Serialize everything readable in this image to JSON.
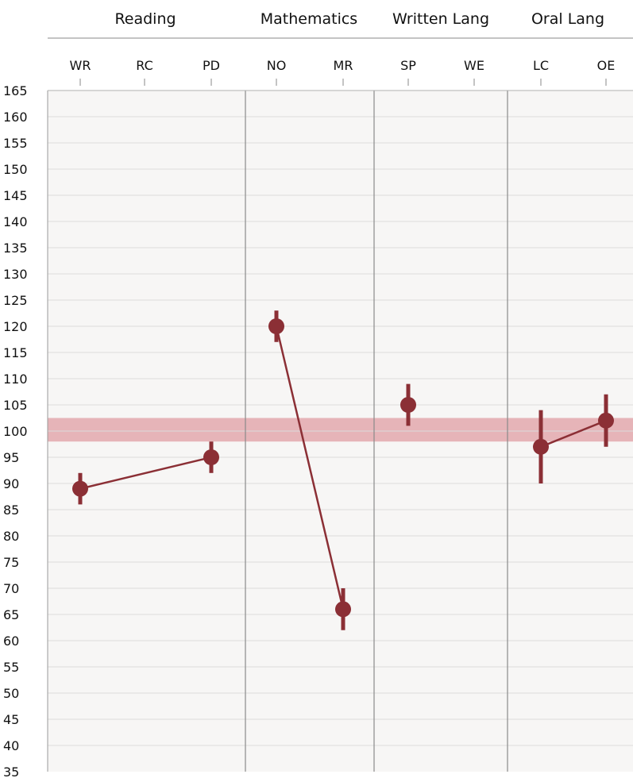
{
  "chart_data": {
    "type": "scatter",
    "title": "",
    "xlabel": "",
    "ylabel": "",
    "ylim": [
      35,
      165
    ],
    "yticks": [
      35,
      40,
      45,
      50,
      55,
      60,
      65,
      70,
      75,
      80,
      85,
      90,
      95,
      100,
      105,
      110,
      115,
      120,
      125,
      130,
      135,
      140,
      145,
      150,
      155,
      160,
      165
    ],
    "grid": true,
    "groups": [
      {
        "name": "Reading",
        "categories": [
          "WR",
          "RC",
          "PD"
        ]
      },
      {
        "name": "Mathematics",
        "categories": [
          "NO",
          "MR"
        ]
      },
      {
        "name": "Written Lang",
        "categories": [
          "SP",
          "WE"
        ]
      },
      {
        "name": "Oral Lang",
        "categories": [
          "LC",
          "OE"
        ]
      }
    ],
    "categories": [
      "WR",
      "RC",
      "PD",
      "NO",
      "MR",
      "SP",
      "WE",
      "LC",
      "OE"
    ],
    "points": [
      {
        "category": "WR",
        "value": 89,
        "low": 86,
        "high": 92
      },
      {
        "category": "PD",
        "value": 95,
        "low": 92,
        "high": 98
      },
      {
        "category": "NO",
        "value": 120,
        "low": 117,
        "high": 123
      },
      {
        "category": "MR",
        "value": 66,
        "low": 62,
        "high": 70
      },
      {
        "category": "SP",
        "value": 105,
        "low": 101,
        "high": 109
      },
      {
        "category": "LC",
        "value": 97,
        "low": 90,
        "high": 104
      },
      {
        "category": "OE",
        "value": 102,
        "low": 97,
        "high": 107
      }
    ],
    "connections": [
      [
        "WR",
        "PD"
      ],
      [
        "NO",
        "MR"
      ],
      [
        "LC",
        "OE"
      ]
    ],
    "reference_band": {
      "low": 98,
      "high": 102.5
    },
    "colors": {
      "series": "#8b2f35",
      "band": "#e6b4b8",
      "plot_bg": "#f7f6f5",
      "grid": "#dcdcdc",
      "group_divider": "#8a8a8a"
    }
  }
}
